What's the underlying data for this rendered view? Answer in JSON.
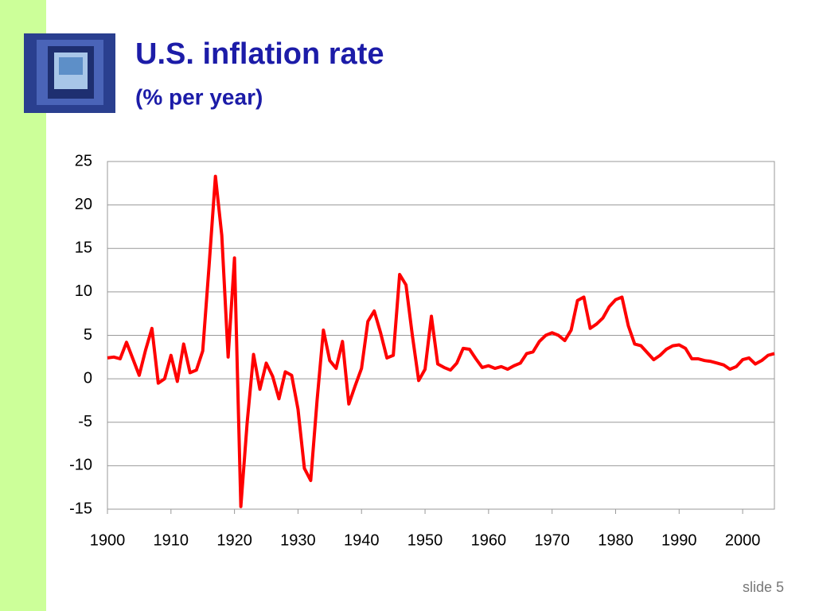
{
  "chart_data": {
    "type": "line",
    "title": "U.S. inflation rate",
    "subtitle": "(% per year)",
    "x": [
      1900,
      1901,
      1902,
      1903,
      1904,
      1905,
      1906,
      1907,
      1908,
      1909,
      1910,
      1911,
      1912,
      1913,
      1914,
      1915,
      1916,
      1917,
      1918,
      1919,
      1920,
      1921,
      1922,
      1923,
      1924,
      1925,
      1926,
      1927,
      1928,
      1929,
      1930,
      1931,
      1932,
      1933,
      1934,
      1935,
      1936,
      1937,
      1938,
      1939,
      1940,
      1941,
      1942,
      1943,
      1944,
      1945,
      1946,
      1947,
      1948,
      1949,
      1950,
      1951,
      1952,
      1953,
      1954,
      1955,
      1956,
      1957,
      1958,
      1959,
      1960,
      1961,
      1962,
      1963,
      1964,
      1965,
      1966,
      1967,
      1968,
      1969,
      1970,
      1971,
      1972,
      1973,
      1974,
      1975,
      1976,
      1977,
      1978,
      1979,
      1980,
      1981,
      1982,
      1983,
      1984,
      1985,
      1986,
      1987,
      1988,
      1989,
      1990,
      1991,
      1992,
      1993,
      1994,
      1995,
      1996,
      1997,
      1998,
      1999,
      2000,
      2001,
      2002,
      2003,
      2004,
      2005
    ],
    "series": [
      {
        "name": "inflation",
        "color": "#ff0000",
        "values": [
          2.4,
          2.5,
          2.3,
          4.2,
          2.3,
          0.4,
          3.3,
          5.8,
          -0.5,
          0,
          2.7,
          -0.3,
          4.0,
          0.7,
          1.0,
          3.2,
          13,
          23.3,
          16.5,
          2.5,
          13.9,
          -14.7,
          -5,
          2.8,
          -1.2,
          1.8,
          0.3,
          -2.3,
          0.8,
          0.4,
          -3.5,
          -10.3,
          -11.7,
          -2.5,
          5.6,
          2.1,
          1.2,
          4.3,
          -2.9,
          -0.8,
          1.2,
          6.6,
          7.8,
          5.3,
          2.4,
          2.7,
          12.0,
          10.8,
          5.0,
          -0.2,
          1.1,
          7.2,
          1.7,
          1.3,
          1.0,
          1.8,
          3.5,
          3.4,
          2.3,
          1.3,
          1.5,
          1.2,
          1.4,
          1.1,
          1.5,
          1.8,
          2.9,
          3.1,
          4.3,
          5.0,
          5.3,
          5.0,
          4.4,
          5.6,
          9.0,
          9.4,
          5.8,
          6.3,
          7.0,
          8.3,
          9.1,
          9.4,
          6.1,
          4.0,
          3.8,
          3.0,
          2.2,
          2.7,
          3.4,
          3.8,
          3.9,
          3.5,
          2.3,
          2.3,
          2.1,
          2.0,
          1.8,
          1.6,
          1.1,
          1.4,
          2.2,
          2.4,
          1.7,
          2.1,
          2.7,
          2.9
        ]
      }
    ],
    "xlim": [
      1900,
      2005
    ],
    "xticks": [
      1900,
      1910,
      1920,
      1930,
      1940,
      1950,
      1960,
      1970,
      1980,
      1990,
      2000
    ],
    "ylim": [
      -15,
      25
    ],
    "yticks": [
      -15,
      -10,
      -5,
      0,
      5,
      10,
      15,
      20,
      25
    ],
    "grid": true
  },
  "footer": "slide 5"
}
